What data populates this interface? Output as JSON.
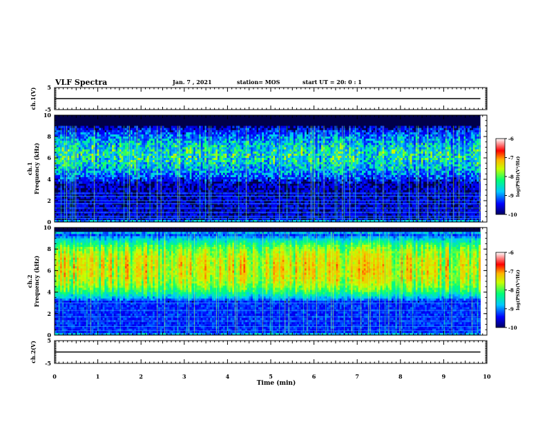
{
  "header": {
    "title": "VLF Spectra",
    "date": "Jan. 7 , 2021",
    "station": "station= MOS",
    "start": "start UT =  20: 0  : 1"
  },
  "chart_data": [
    {
      "type": "line",
      "panel": "ch1-waveform",
      "ylabel": "ch.1(V)",
      "ylim": [
        -5,
        5
      ],
      "yticks": [
        "5",
        "-5"
      ],
      "series": [
        {
          "x": [
            0,
            9.85
          ],
          "y": [
            0,
            0
          ]
        }
      ]
    },
    {
      "type": "heatmap",
      "panel": "ch1-spectrogram",
      "ylabel": "ch.1\nFrequency (kHz)",
      "ylim": [
        0,
        10
      ],
      "yticks": [
        "0",
        "2",
        "4",
        "6",
        "8",
        "10"
      ],
      "data_extent_x": [
        0,
        9.85
      ],
      "band_khz": [
        3.5,
        9.0
      ],
      "peak_log_psd": -7.6,
      "colorbar": {
        "label": "log(PSD)(V²/Hz)",
        "ticks": [
          "-6",
          "-7",
          "-8",
          "-9",
          "-10"
        ],
        "range": [
          -10,
          -6
        ]
      }
    },
    {
      "type": "heatmap",
      "panel": "ch2-spectrogram",
      "ylabel": "ch.2\nFrequency (kHz)",
      "ylim": [
        0,
        10
      ],
      "yticks": [
        "0",
        "2",
        "4",
        "6",
        "8",
        "10"
      ],
      "data_extent_x": [
        0,
        9.85
      ],
      "band_khz": [
        3.0,
        9.5
      ],
      "peak_log_psd": -7.0,
      "colorbar": {
        "label": "log(PSD)(V²/Hz)",
        "ticks": [
          "-6",
          "-7",
          "-8",
          "-9",
          "-10"
        ],
        "range": [
          -10,
          -6
        ]
      }
    },
    {
      "type": "line",
      "panel": "ch2-waveform",
      "ylabel": "ch.2(V)",
      "ylim": [
        -5,
        5
      ],
      "yticks": [
        "5",
        "-5"
      ],
      "series": [
        {
          "x": [
            0,
            9.85
          ],
          "y": [
            0,
            0
          ]
        }
      ]
    }
  ],
  "xaxis": {
    "label": "Time (min)",
    "range": [
      0,
      10
    ],
    "ticks": [
      "0",
      "1",
      "2",
      "3",
      "4",
      "5",
      "6",
      "7",
      "8",
      "9",
      "10"
    ]
  },
  "colors": {
    "colormap": [
      "#000060",
      "#0000ff",
      "#00c8ff",
      "#00ff78",
      "#c8ff00",
      "#ffb400",
      "#ff0000",
      "#ffffff"
    ],
    "dark_background": "#00004a"
  }
}
